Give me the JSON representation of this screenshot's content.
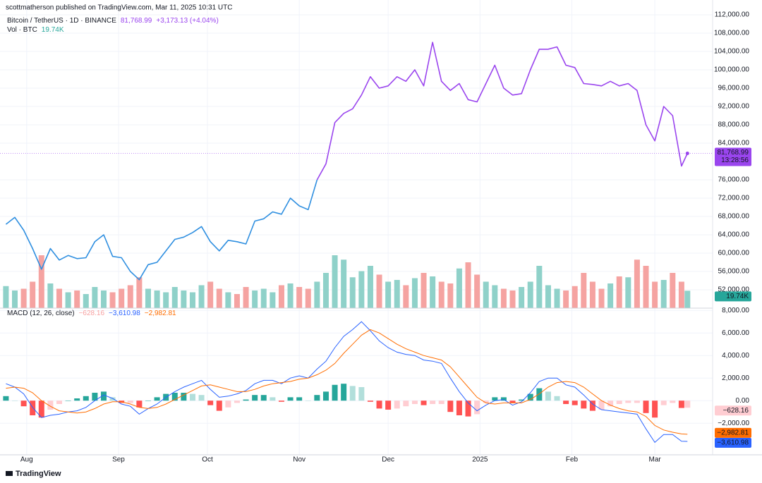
{
  "header": {
    "published": "scottmatherson published on TradingView.com, Mar 11, 2025 10:31 UTC",
    "symbol": "Bitcoin / TetherUS · 1D · BINANCE",
    "last": "81,768.99",
    "change": "+3,173.13 (+4.04%)",
    "vol_label": "Vol · BTC",
    "vol_last": "19.74K",
    "countdown": "13:28:56"
  },
  "chart_data": [
    {
      "type": "line",
      "x": [
        0,
        3,
        6,
        9,
        12,
        15,
        18,
        21,
        24,
        27,
        30,
        33,
        36,
        39,
        42,
        45,
        48,
        51,
        54,
        57,
        60,
        63,
        66,
        69,
        72,
        75,
        78,
        81,
        84,
        87,
        90,
        93,
        96,
        99,
        102,
        105,
        108,
        111,
        114,
        117,
        120,
        123,
        126,
        129,
        132,
        135,
        138,
        141,
        144,
        147,
        150,
        153,
        156,
        159,
        162,
        165,
        168,
        171,
        174,
        177,
        180,
        183,
        186,
        189,
        192,
        195,
        198,
        201,
        204,
        207,
        210,
        213,
        216,
        219,
        222,
        225,
        228,
        230
      ],
      "xlim": [
        -2,
        238.5
      ],
      "xticks": [
        {
          "value": 7,
          "label": "Aug"
        },
        {
          "value": 38,
          "label": "Sep"
        },
        {
          "value": 68,
          "label": "Oct"
        },
        {
          "value": 99,
          "label": "Nov"
        },
        {
          "value": 129,
          "label": "Dec"
        },
        {
          "value": 160,
          "label": "2025"
        },
        {
          "value": 191,
          "label": "Feb"
        },
        {
          "value": 219,
          "label": "Mar"
        }
      ],
      "ylim": [
        48000,
        114000
      ],
      "yticks": [
        {
          "value": 52000,
          "label": "52,000.00"
        },
        {
          "value": 56000,
          "label": "56,000.00"
        },
        {
          "value": 60000,
          "label": "60,000.00"
        },
        {
          "value": 64000,
          "label": "64,000.00"
        },
        {
          "value": 68000,
          "label": "68,000.00"
        },
        {
          "value": 72000,
          "label": "72,000.00"
        },
        {
          "value": 76000,
          "label": "76,000.00"
        },
        {
          "value": 84000,
          "label": "84,000.00"
        },
        {
          "value": 88000,
          "label": "88,000.00"
        },
        {
          "value": 92000,
          "label": "92,000.00"
        },
        {
          "value": 96000,
          "label": "96,000.00"
        },
        {
          "value": 100000,
          "label": "100,000.00"
        },
        {
          "value": 104000,
          "label": "104,000.00"
        },
        {
          "value": 108000,
          "label": "108,000.00"
        },
        {
          "value": 112000,
          "label": "112,000.00"
        }
      ],
      "grid": true,
      "series": [
        {
          "color": "#2f8fe0",
          "values": [
            66300,
            67800,
            65000,
            61000,
            56500,
            61000,
            58500,
            59500,
            58800,
            59000,
            62500,
            64000,
            59300,
            59000,
            56000,
            54200,
            57500,
            58000,
            60500,
            63000,
            63500,
            64500,
            65800,
            62500,
            60500,
            62800,
            62500,
            62000,
            67000,
            67500,
            69000,
            68500,
            72000,
            70300,
            69500,
            76000,
            null,
            null,
            null,
            null,
            null,
            null,
            null,
            null,
            null,
            null,
            null,
            null,
            null,
            null,
            null,
            null,
            null,
            null,
            null,
            null,
            null,
            null,
            null,
            null,
            null,
            null,
            null,
            null,
            null,
            null,
            null,
            null,
            null,
            null,
            null,
            null,
            null,
            null,
            null,
            null,
            null,
            null
          ]
        },
        {
          "color": "#9a45ee",
          "values": [
            null,
            null,
            null,
            null,
            null,
            null,
            null,
            null,
            null,
            null,
            null,
            null,
            null,
            null,
            null,
            null,
            null,
            null,
            null,
            null,
            null,
            null,
            null,
            null,
            null,
            null,
            null,
            null,
            null,
            null,
            null,
            null,
            null,
            null,
            null,
            76000,
            79500,
            88500,
            90500,
            91500,
            94500,
            98500,
            96000,
            96500,
            98500,
            97500,
            100000,
            96500,
            106000,
            97500,
            95500,
            97000,
            93500,
            93000,
            97000,
            101000,
            96000,
            94500,
            94800,
            100000,
            104500,
            104500,
            105000,
            101000,
            100500,
            97000,
            96800,
            96500,
            97500,
            96500,
            97000,
            95500,
            88000,
            84500,
            92000,
            90000,
            79000,
            81768.99
          ]
        }
      ],
      "volume": {
        "values": [
          25,
          20,
          22,
          30,
          60,
          28,
          22,
          18,
          20,
          16,
          24,
          20,
          18,
          22,
          26,
          35,
          22,
          20,
          18,
          24,
          20,
          18,
          26,
          30,
          22,
          18,
          16,
          24,
          20,
          22,
          18,
          26,
          28,
          24,
          22,
          30,
          40,
          60,
          55,
          35,
          42,
          48,
          38,
          30,
          32,
          26,
          34,
          40,
          36,
          30,
          28,
          45,
          52,
          38,
          30,
          26,
          22,
          20,
          24,
          30,
          48,
          26,
          22,
          20,
          25,
          40,
          30,
          22,
          28,
          36,
          35,
          55,
          48,
          30,
          32,
          40,
          30,
          19.74
        ],
        "ylim": [
          0,
          80
        ],
        "up_color": "#8fd1c9",
        "down_color": "#f5a3a1"
      }
    },
    {
      "type": "macd",
      "title": "MACD (12, 26, close)",
      "x": [
        0,
        3,
        6,
        9,
        12,
        15,
        18,
        21,
        24,
        27,
        30,
        33,
        36,
        39,
        42,
        45,
        48,
        51,
        54,
        57,
        60,
        63,
        66,
        69,
        72,
        75,
        78,
        81,
        84,
        87,
        90,
        93,
        96,
        99,
        102,
        105,
        108,
        111,
        114,
        117,
        120,
        123,
        126,
        129,
        132,
        135,
        138,
        141,
        144,
        147,
        150,
        153,
        156,
        159,
        162,
        165,
        168,
        171,
        174,
        177,
        180,
        183,
        186,
        189,
        192,
        195,
        198,
        201,
        204,
        207,
        210,
        213,
        216,
        219,
        222,
        225,
        228,
        230
      ],
      "xlim": [
        -2,
        238.5
      ],
      "ylim": [
        -4800,
        8200
      ],
      "yticks": [
        {
          "value": -2000,
          "label": "−2,000.00"
        },
        {
          "value": 0,
          "label": "0.00"
        },
        {
          "value": 2000,
          "label": "2,000.00"
        },
        {
          "value": 4000,
          "label": "4,000.00"
        },
        {
          "value": 6000,
          "label": "6,000.00"
        },
        {
          "value": 8000,
          "label": "8,000.00"
        }
      ],
      "histogram": {
        "values": [
          400,
          0,
          -500,
          -1300,
          -1500,
          -800,
          -300,
          0,
          200,
          400,
          700,
          800,
          300,
          -200,
          -200,
          -600,
          0,
          300,
          600,
          700,
          700,
          600,
          500,
          -400,
          -900,
          -600,
          -200,
          100,
          500,
          500,
          300,
          -100,
          300,
          300,
          0,
          500,
          800,
          1400,
          1500,
          1300,
          1200,
          -100,
          -700,
          -800,
          -700,
          -500,
          -300,
          -400,
          -300,
          -300,
          -1000,
          -1300,
          -1400,
          -1200,
          -200,
          300,
          300,
          -200,
          100,
          600,
          1100,
          800,
          400,
          -300,
          -400,
          -700,
          -900,
          -800,
          -500,
          -300,
          -200,
          -200,
          -1100,
          -1500,
          -400,
          -200,
          -650,
          -628.16
        ],
        "last_label": "−628.16",
        "colors": [
          "#26a69a",
          "#b2dfdb",
          "#ffcdd2",
          "#ff5252"
        ]
      },
      "series": [
        {
          "color": "#2962ff",
          "last_label": "−3,610.98",
          "values": [
            1500,
            1200,
            600,
            -600,
            -1500,
            -1300,
            -1200,
            -1000,
            -900,
            -600,
            0,
            500,
            200,
            -300,
            -500,
            -1200,
            -700,
            -300,
            300,
            800,
            1200,
            1500,
            1800,
            1000,
            300,
            400,
            600,
            900,
            1500,
            1800,
            1800,
            1500,
            2000,
            2200,
            2000,
            2800,
            3500,
            4700,
            5700,
            6300,
            7000,
            6200,
            5300,
            4700,
            4300,
            4100,
            4000,
            3600,
            3500,
            3300,
            2000,
            800,
            -200,
            -900,
            -400,
            0,
            100,
            -400,
            -100,
            700,
            1700,
            2000,
            2000,
            1400,
            1200,
            500,
            -300,
            -800,
            -900,
            -1000,
            -1100,
            -1200,
            -2500,
            -3700,
            -3000,
            -3000,
            -3600,
            -3610.98
          ]
        },
        {
          "color": "#ff6d00",
          "last_label": "−2,982.81",
          "values": [
            1100,
            1200,
            1100,
            700,
            0,
            -500,
            -900,
            -1000,
            -1100,
            -1000,
            -700,
            -300,
            -100,
            -100,
            -300,
            -600,
            -700,
            -600,
            -300,
            100,
            500,
            900,
            1300,
            1400,
            1200,
            1000,
            800,
            800,
            1000,
            1300,
            1500,
            1600,
            1700,
            1900,
            2000,
            2300,
            2700,
            3300,
            4200,
            5000,
            5800,
            6300,
            6000,
            5500,
            5000,
            4600,
            4300,
            4000,
            3800,
            3600,
            3000,
            2100,
            1200,
            300,
            -200,
            -300,
            -200,
            -200,
            -200,
            100,
            600,
            1200,
            1600,
            1700,
            1600,
            1200,
            600,
            0,
            -400,
            -700,
            -900,
            -1000,
            -1400,
            -2200,
            -2600,
            -2800,
            -2950,
            -2982.81
          ]
        }
      ]
    }
  ],
  "footer": "TradingView"
}
